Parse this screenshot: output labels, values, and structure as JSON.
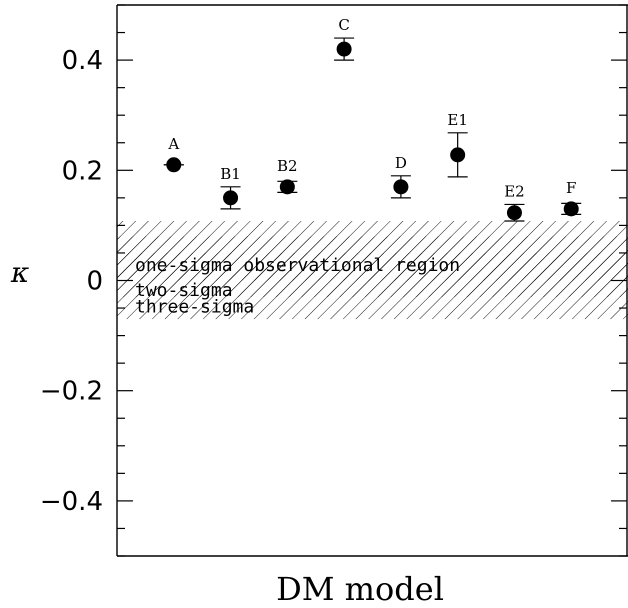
{
  "chart_data": {
    "type": "scatter",
    "title": "",
    "xlabel": "DM model",
    "ylabel": "κ",
    "ylim": [
      -0.5,
      0.5
    ],
    "xlim": [
      0,
      9
    ],
    "y_ticks": [
      -0.4,
      -0.2,
      0,
      0.2,
      0.4
    ],
    "y_tick_labels": [
      "−0.4",
      "−0.2",
      "0",
      "0.2",
      "0.4"
    ],
    "y_minor_step": 0.05,
    "points": [
      {
        "label": "A",
        "x": 1,
        "y": 0.21,
        "err_low": 0.0,
        "err_high": 0.0
      },
      {
        "label": "B1",
        "x": 2,
        "y": 0.15,
        "err_low": 0.02,
        "err_high": 0.02
      },
      {
        "label": "B2",
        "x": 3,
        "y": 0.17,
        "err_low": 0.01,
        "err_high": 0.01
      },
      {
        "label": "C",
        "x": 4,
        "y": 0.42,
        "err_low": 0.02,
        "err_high": 0.02
      },
      {
        "label": "D",
        "x": 5,
        "y": 0.17,
        "err_low": 0.02,
        "err_high": 0.02
      },
      {
        "label": "E1",
        "x": 6,
        "y": 0.228,
        "err_low": 0.04,
        "err_high": 0.04
      },
      {
        "label": "E2",
        "x": 7,
        "y": 0.123,
        "err_low": 0.015,
        "err_high": 0.015
      },
      {
        "label": "F",
        "x": 8,
        "y": 0.13,
        "err_low": 0.01,
        "err_high": 0.01
      }
    ],
    "bands": [
      {
        "name": "one-sigma observational region",
        "ymin": 0.0,
        "ymax": 0.05
      },
      {
        "name": "two-sigma",
        "ymin": -0.03,
        "ymax": 0.08
      },
      {
        "name": "three-sigma",
        "ymin": -0.07,
        "ymax": 0.108
      }
    ],
    "grid": false,
    "legend": "none"
  }
}
